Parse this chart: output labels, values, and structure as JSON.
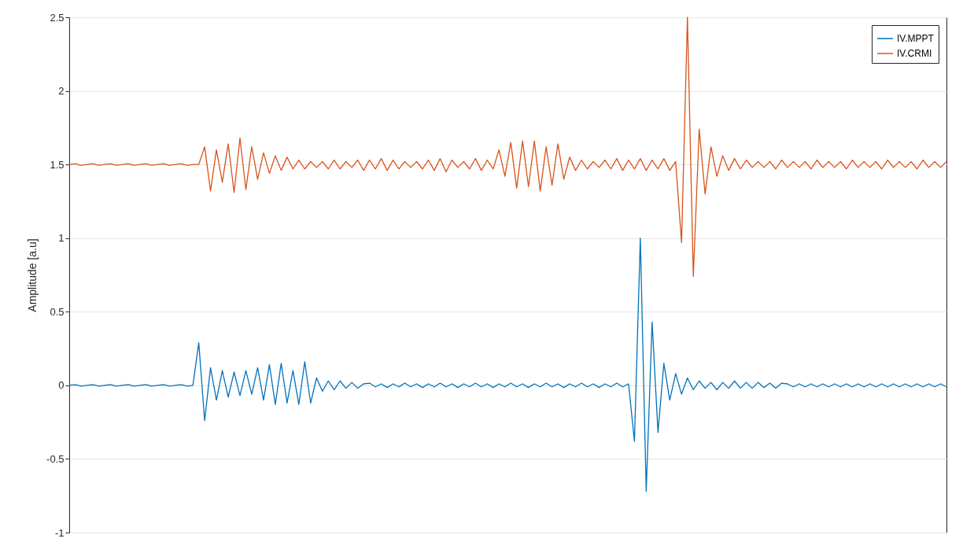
{
  "chart_data": {
    "type": "line",
    "ylabel": "Amplitude [a.u]",
    "categories": [
      null,
      null,
      null,
      null,
      null,
      null,
      null,
      null,
      null,
      null,
      null,
      null,
      null,
      null,
      null,
      null,
      null,
      null,
      null,
      null,
      null,
      null,
      null,
      null,
      null,
      null,
      null,
      null,
      null,
      null,
      null,
      null,
      null,
      null,
      null,
      null,
      null,
      null,
      null,
      null,
      null,
      null,
      null,
      null,
      null,
      null,
      null,
      null,
      null,
      null,
      null,
      null,
      null,
      null,
      null,
      null,
      null,
      null,
      null,
      null,
      null,
      null,
      null,
      null,
      null,
      null,
      null,
      null,
      null,
      null,
      null,
      null,
      null,
      null,
      null,
      null,
      null,
      null,
      null,
      null,
      null,
      null,
      null,
      null,
      null,
      null,
      null,
      null,
      null,
      null,
      null,
      null,
      null,
      null,
      null,
      null,
      null,
      null,
      null,
      null,
      null,
      null,
      null,
      null,
      null,
      null,
      null,
      null,
      null,
      null,
      null,
      null,
      null,
      null,
      null,
      null,
      null,
      null,
      null,
      null,
      null,
      null,
      null,
      null,
      null,
      null,
      null,
      null,
      null,
      null,
      null,
      null,
      null,
      null,
      null,
      null,
      null,
      null,
      null,
      null,
      null,
      null,
      null,
      null,
      null,
      null,
      null,
      null,
      null,
      null
    ],
    "series": [
      {
        "name": "IV.MPPT",
        "color": "#0072bd",
        "values": [
          0,
          0.005,
          -0.005,
          0,
          0.005,
          -0.005,
          0,
          0.005,
          -0.005,
          0,
          0.005,
          -0.005,
          0,
          0.005,
          -0.005,
          0,
          0.005,
          -0.005,
          0,
          0.005,
          -0.005,
          0,
          0.29,
          -0.24,
          0.12,
          -0.1,
          0.1,
          -0.08,
          0.09,
          -0.07,
          0.1,
          -0.06,
          0.12,
          -0.1,
          0.14,
          -0.13,
          0.15,
          -0.12,
          0.1,
          -0.13,
          0.16,
          -0.12,
          0.05,
          -0.04,
          0.03,
          -0.03,
          0.03,
          -0.02,
          0.02,
          -0.02,
          0.01,
          0.015,
          -0.01,
          0.01,
          -0.015,
          0.01,
          -0.01,
          0.015,
          -0.01,
          0.01,
          -0.015,
          0.01,
          -0.01,
          0.015,
          -0.01,
          0.01,
          -0.015,
          0.01,
          -0.01,
          0.015,
          -0.01,
          0.01,
          -0.015,
          0.01,
          -0.01,
          0.015,
          -0.01,
          0.01,
          -0.015,
          0.01,
          -0.01,
          0.015,
          -0.01,
          0.01,
          -0.015,
          0.01,
          -0.01,
          0.015,
          -0.01,
          0.01,
          -0.015,
          0.01,
          -0.01,
          0.015,
          -0.01,
          0.01,
          -0.38,
          1.0,
          -0.72,
          0.43,
          -0.32,
          0.15,
          -0.1,
          0.08,
          -0.06,
          0.05,
          -0.03,
          0.03,
          -0.02,
          0.02,
          -0.03,
          0.02,
          -0.02,
          0.03,
          -0.02,
          0.02,
          -0.02,
          0.02,
          -0.015,
          0.015,
          -0.02,
          0.015,
          0.01,
          -0.01,
          0.01,
          -0.01,
          0.01,
          -0.01,
          0.01,
          -0.01,
          0.01,
          -0.01,
          0.01,
          -0.01,
          0.01,
          -0.01,
          0.01,
          -0.01,
          0.01,
          -0.01,
          0.01,
          -0.01,
          0.01,
          -0.01,
          0.01,
          -0.01,
          0.01,
          -0.01,
          0.01,
          -0.01
        ]
      },
      {
        "name": "IV.CRMI",
        "color": "#d95319",
        "values": [
          1.5,
          1.505,
          1.495,
          1.5,
          1.505,
          1.495,
          1.5,
          1.505,
          1.495,
          1.5,
          1.505,
          1.495,
          1.5,
          1.505,
          1.495,
          1.5,
          1.505,
          1.495,
          1.5,
          1.505,
          1.495,
          1.5,
          1.5,
          1.62,
          1.32,
          1.6,
          1.38,
          1.64,
          1.31,
          1.68,
          1.33,
          1.62,
          1.4,
          1.58,
          1.44,
          1.56,
          1.46,
          1.55,
          1.47,
          1.53,
          1.47,
          1.52,
          1.48,
          1.52,
          1.47,
          1.53,
          1.47,
          1.52,
          1.48,
          1.53,
          1.46,
          1.53,
          1.47,
          1.54,
          1.46,
          1.53,
          1.47,
          1.52,
          1.48,
          1.52,
          1.47,
          1.53,
          1.46,
          1.54,
          1.45,
          1.53,
          1.48,
          1.52,
          1.47,
          1.54,
          1.46,
          1.53,
          1.47,
          1.6,
          1.42,
          1.65,
          1.34,
          1.66,
          1.35,
          1.66,
          1.32,
          1.62,
          1.36,
          1.64,
          1.4,
          1.55,
          1.46,
          1.53,
          1.47,
          1.52,
          1.48,
          1.53,
          1.47,
          1.54,
          1.46,
          1.53,
          1.47,
          1.54,
          1.46,
          1.53,
          1.47,
          1.54,
          1.46,
          1.52,
          0.97,
          2.5,
          0.74,
          1.74,
          1.3,
          1.62,
          1.42,
          1.56,
          1.46,
          1.54,
          1.47,
          1.53,
          1.48,
          1.52,
          1.48,
          1.52,
          1.47,
          1.53,
          1.48,
          1.52,
          1.48,
          1.52,
          1.47,
          1.53,
          1.48,
          1.52,
          1.48,
          1.52,
          1.47,
          1.53,
          1.48,
          1.52,
          1.48,
          1.52,
          1.47,
          1.53,
          1.48,
          1.52,
          1.48,
          1.52,
          1.47,
          1.53,
          1.48,
          1.52,
          1.48,
          1.52
        ]
      }
    ],
    "ylim": [
      -1,
      2.5
    ],
    "yticks": [
      -1,
      -0.5,
      0,
      0.5,
      1,
      1.5,
      2,
      2.5
    ],
    "grid": "y",
    "legend": "top right",
    "tick_labels": "y",
    "line_style": "solid"
  }
}
